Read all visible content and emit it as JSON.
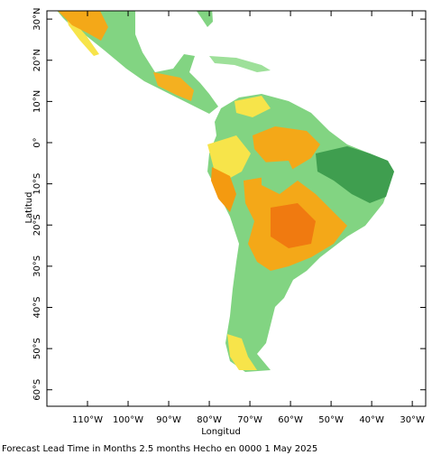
{
  "chart_data": {
    "type": "map",
    "x_label": "Longitud",
    "y_label": "Latitud",
    "footer": "Forecast Lead Time in Months 2.5 months Hecho en 0000 1 May 2025",
    "xlim": [
      -120,
      -26.7
    ],
    "ylim": [
      -64,
      32
    ],
    "xticks": [
      {
        "value": -110,
        "label": "110°W"
      },
      {
        "value": -100,
        "label": "100°W"
      },
      {
        "value": -90,
        "label": "90°W"
      },
      {
        "value": -80,
        "label": "80°W"
      },
      {
        "value": -70,
        "label": "70°W"
      },
      {
        "value": -60,
        "label": "60°W"
      },
      {
        "value": -50,
        "label": "50°W"
      },
      {
        "value": -40,
        "label": "40°W"
      },
      {
        "value": -30,
        "label": "30°W"
      }
    ],
    "yticks": [
      {
        "value": 30,
        "label": "30°N"
      },
      {
        "value": 20,
        "label": "20°N"
      },
      {
        "value": 10,
        "label": "10°N"
      },
      {
        "value": 0,
        "label": "0°"
      },
      {
        "value": -10,
        "label": "10°S"
      },
      {
        "value": -20,
        "label": "20°S"
      },
      {
        "value": -30,
        "label": "30°S"
      },
      {
        "value": -40,
        "label": "40°S"
      },
      {
        "value": -50,
        "label": "50°S"
      },
      {
        "value": -60,
        "label": "60°S"
      }
    ]
  }
}
